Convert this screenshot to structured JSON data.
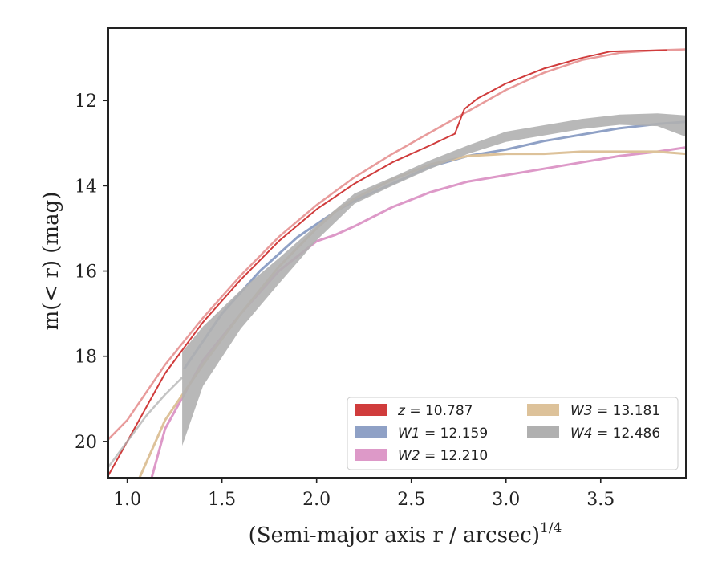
{
  "chart_data": {
    "type": "line",
    "title": "",
    "xlabel": "(Semi-major axis r / arcsec)",
    "xlabel_sup": "1/4",
    "ylabel": "m(< r) (mag)",
    "xlim": [
      0.9,
      3.95
    ],
    "ylim": [
      20.85,
      10.3
    ],
    "y_inverted": true,
    "grid": false,
    "legend_placement": "lower-right",
    "xticks": [
      1.0,
      1.5,
      2.0,
      2.5,
      3.0,
      3.5
    ],
    "xtick_labels": [
      "1.0",
      "1.5",
      "2.0",
      "2.5",
      "3.0",
      "3.5"
    ],
    "yticks": [
      12,
      14,
      16,
      18,
      20
    ],
    "ytick_labels": [
      "12",
      "14",
      "16",
      "18",
      "20"
    ],
    "series": [
      {
        "name": "z = 10.787",
        "band": "z",
        "total_mag": "10.787",
        "color": "#d03c3c",
        "model_color": "#e07a7a",
        "x": [
          0.9,
          1.0,
          1.2,
          1.4,
          1.6,
          1.8,
          2.0,
          2.2,
          2.4,
          2.6,
          2.73,
          2.78,
          2.85,
          3.0,
          3.2,
          3.4,
          3.55,
          3.7,
          3.85
        ],
        "y": [
          20.8,
          20.0,
          18.4,
          17.2,
          16.2,
          15.3,
          14.55,
          13.95,
          13.45,
          13.05,
          12.78,
          12.2,
          11.95,
          11.6,
          11.25,
          11.0,
          10.85,
          10.83,
          10.82
        ],
        "model_x": [
          0.9,
          1.0,
          1.2,
          1.4,
          1.6,
          1.8,
          2.0,
          2.2,
          2.4,
          2.6,
          2.8,
          3.0,
          3.2,
          3.4,
          3.6,
          3.8,
          3.95
        ],
        "model_y": [
          19.95,
          19.5,
          18.2,
          17.1,
          16.1,
          15.2,
          14.45,
          13.8,
          13.25,
          12.75,
          12.25,
          11.75,
          11.35,
          11.05,
          10.88,
          10.82,
          10.8
        ]
      },
      {
        "name": "W1 = 12.159",
        "band": "W1",
        "total_mag": "12.159",
        "color": "#8fa1c6",
        "x": [
          1.3,
          1.5,
          1.7,
          1.9,
          2.0,
          2.1,
          2.2,
          2.4,
          2.6,
          2.8,
          3.0,
          3.2,
          3.4,
          3.6,
          3.8,
          3.95
        ],
        "y": [
          18.3,
          17.0,
          16.0,
          15.2,
          14.9,
          14.6,
          14.35,
          13.95,
          13.55,
          13.3,
          13.15,
          12.95,
          12.8,
          12.65,
          12.55,
          12.5
        ]
      },
      {
        "name": "W2 = 12.210",
        "band": "W2",
        "total_mag": "12.210",
        "color": "#dd99c8",
        "x": [
          1.12,
          1.2,
          1.4,
          1.6,
          1.8,
          2.0,
          2.1,
          2.2,
          2.4,
          2.6,
          2.8,
          3.0,
          3.2,
          3.4,
          3.6,
          3.8,
          3.95
        ],
        "y": [
          21.0,
          19.7,
          18.1,
          17.0,
          16.0,
          15.3,
          15.15,
          14.95,
          14.5,
          14.15,
          13.9,
          13.75,
          13.6,
          13.45,
          13.3,
          13.2,
          13.1
        ]
      },
      {
        "name": "W3 = 13.181",
        "band": "W3",
        "total_mag": "13.181",
        "color": "#ddc29a",
        "x": [
          1.05,
          1.2,
          1.4,
          1.6,
          1.8,
          2.0,
          2.1,
          2.2,
          2.4,
          2.6,
          2.8,
          3.0,
          3.2,
          3.4,
          3.6,
          3.8,
          3.95
        ],
        "y": [
          21.0,
          19.5,
          18.2,
          17.0,
          15.9,
          15.0,
          14.6,
          14.3,
          13.85,
          13.5,
          13.3,
          13.25,
          13.25,
          13.2,
          13.2,
          13.2,
          13.25
        ]
      },
      {
        "name": "W4 = 12.486",
        "band": "W4",
        "total_mag": "12.486",
        "color": "#b0b0b0",
        "x": [
          1.29,
          1.4,
          1.6,
          1.8,
          2.0,
          2.2,
          2.4,
          2.6,
          2.8,
          3.0,
          3.2,
          3.4,
          3.6,
          3.8,
          3.95
        ],
        "y": [
          19.0,
          18.0,
          16.9,
          16.0,
          15.1,
          14.3,
          13.9,
          13.5,
          13.15,
          12.85,
          12.7,
          12.55,
          12.45,
          12.45,
          12.6
        ],
        "err": [
          1.1,
          0.7,
          0.45,
          0.3,
          0.18,
          0.12,
          0.1,
          0.1,
          0.1,
          0.12,
          0.12,
          0.12,
          0.12,
          0.15,
          0.25
        ],
        "model_x": [
          0.9,
          1.0,
          1.1,
          1.2,
          1.29
        ],
        "model_y": [
          20.6,
          20.0,
          19.4,
          18.9,
          18.5
        ]
      }
    ]
  }
}
